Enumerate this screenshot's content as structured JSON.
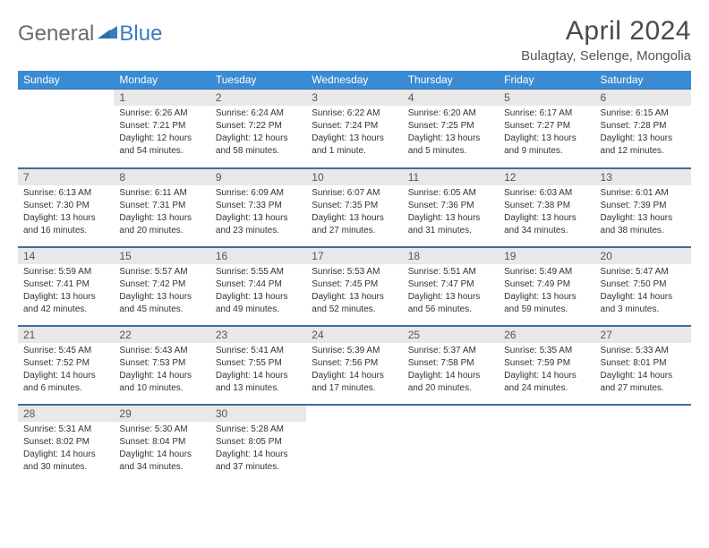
{
  "logo": {
    "general": "General",
    "blue": "Blue"
  },
  "title": "April 2024",
  "subtitle": "Bulagtay, Selenge, Mongolia",
  "colors": {
    "header_bg": "#3b8bd4",
    "header_text": "#ffffff",
    "daynum_bg": "#e8e8e8",
    "row_border": "#3b6fa0",
    "logo_gray": "#6b6b6b",
    "logo_blue": "#3b7bbf"
  },
  "weekdays": [
    "Sunday",
    "Monday",
    "Tuesday",
    "Wednesday",
    "Thursday",
    "Friday",
    "Saturday"
  ],
  "weeks": [
    [
      {
        "n": "",
        "sr": "",
        "ss": "",
        "dl": ""
      },
      {
        "n": "1",
        "sr": "Sunrise: 6:26 AM",
        "ss": "Sunset: 7:21 PM",
        "dl": "Daylight: 12 hours and 54 minutes."
      },
      {
        "n": "2",
        "sr": "Sunrise: 6:24 AM",
        "ss": "Sunset: 7:22 PM",
        "dl": "Daylight: 12 hours and 58 minutes."
      },
      {
        "n": "3",
        "sr": "Sunrise: 6:22 AM",
        "ss": "Sunset: 7:24 PM",
        "dl": "Daylight: 13 hours and 1 minute."
      },
      {
        "n": "4",
        "sr": "Sunrise: 6:20 AM",
        "ss": "Sunset: 7:25 PM",
        "dl": "Daylight: 13 hours and 5 minutes."
      },
      {
        "n": "5",
        "sr": "Sunrise: 6:17 AM",
        "ss": "Sunset: 7:27 PM",
        "dl": "Daylight: 13 hours and 9 minutes."
      },
      {
        "n": "6",
        "sr": "Sunrise: 6:15 AM",
        "ss": "Sunset: 7:28 PM",
        "dl": "Daylight: 13 hours and 12 minutes."
      }
    ],
    [
      {
        "n": "7",
        "sr": "Sunrise: 6:13 AM",
        "ss": "Sunset: 7:30 PM",
        "dl": "Daylight: 13 hours and 16 minutes."
      },
      {
        "n": "8",
        "sr": "Sunrise: 6:11 AM",
        "ss": "Sunset: 7:31 PM",
        "dl": "Daylight: 13 hours and 20 minutes."
      },
      {
        "n": "9",
        "sr": "Sunrise: 6:09 AM",
        "ss": "Sunset: 7:33 PM",
        "dl": "Daylight: 13 hours and 23 minutes."
      },
      {
        "n": "10",
        "sr": "Sunrise: 6:07 AM",
        "ss": "Sunset: 7:35 PM",
        "dl": "Daylight: 13 hours and 27 minutes."
      },
      {
        "n": "11",
        "sr": "Sunrise: 6:05 AM",
        "ss": "Sunset: 7:36 PM",
        "dl": "Daylight: 13 hours and 31 minutes."
      },
      {
        "n": "12",
        "sr": "Sunrise: 6:03 AM",
        "ss": "Sunset: 7:38 PM",
        "dl": "Daylight: 13 hours and 34 minutes."
      },
      {
        "n": "13",
        "sr": "Sunrise: 6:01 AM",
        "ss": "Sunset: 7:39 PM",
        "dl": "Daylight: 13 hours and 38 minutes."
      }
    ],
    [
      {
        "n": "14",
        "sr": "Sunrise: 5:59 AM",
        "ss": "Sunset: 7:41 PM",
        "dl": "Daylight: 13 hours and 42 minutes."
      },
      {
        "n": "15",
        "sr": "Sunrise: 5:57 AM",
        "ss": "Sunset: 7:42 PM",
        "dl": "Daylight: 13 hours and 45 minutes."
      },
      {
        "n": "16",
        "sr": "Sunrise: 5:55 AM",
        "ss": "Sunset: 7:44 PM",
        "dl": "Daylight: 13 hours and 49 minutes."
      },
      {
        "n": "17",
        "sr": "Sunrise: 5:53 AM",
        "ss": "Sunset: 7:45 PM",
        "dl": "Daylight: 13 hours and 52 minutes."
      },
      {
        "n": "18",
        "sr": "Sunrise: 5:51 AM",
        "ss": "Sunset: 7:47 PM",
        "dl": "Daylight: 13 hours and 56 minutes."
      },
      {
        "n": "19",
        "sr": "Sunrise: 5:49 AM",
        "ss": "Sunset: 7:49 PM",
        "dl": "Daylight: 13 hours and 59 minutes."
      },
      {
        "n": "20",
        "sr": "Sunrise: 5:47 AM",
        "ss": "Sunset: 7:50 PM",
        "dl": "Daylight: 14 hours and 3 minutes."
      }
    ],
    [
      {
        "n": "21",
        "sr": "Sunrise: 5:45 AM",
        "ss": "Sunset: 7:52 PM",
        "dl": "Daylight: 14 hours and 6 minutes."
      },
      {
        "n": "22",
        "sr": "Sunrise: 5:43 AM",
        "ss": "Sunset: 7:53 PM",
        "dl": "Daylight: 14 hours and 10 minutes."
      },
      {
        "n": "23",
        "sr": "Sunrise: 5:41 AM",
        "ss": "Sunset: 7:55 PM",
        "dl": "Daylight: 14 hours and 13 minutes."
      },
      {
        "n": "24",
        "sr": "Sunrise: 5:39 AM",
        "ss": "Sunset: 7:56 PM",
        "dl": "Daylight: 14 hours and 17 minutes."
      },
      {
        "n": "25",
        "sr": "Sunrise: 5:37 AM",
        "ss": "Sunset: 7:58 PM",
        "dl": "Daylight: 14 hours and 20 minutes."
      },
      {
        "n": "26",
        "sr": "Sunrise: 5:35 AM",
        "ss": "Sunset: 7:59 PM",
        "dl": "Daylight: 14 hours and 24 minutes."
      },
      {
        "n": "27",
        "sr": "Sunrise: 5:33 AM",
        "ss": "Sunset: 8:01 PM",
        "dl": "Daylight: 14 hours and 27 minutes."
      }
    ],
    [
      {
        "n": "28",
        "sr": "Sunrise: 5:31 AM",
        "ss": "Sunset: 8:02 PM",
        "dl": "Daylight: 14 hours and 30 minutes."
      },
      {
        "n": "29",
        "sr": "Sunrise: 5:30 AM",
        "ss": "Sunset: 8:04 PM",
        "dl": "Daylight: 14 hours and 34 minutes."
      },
      {
        "n": "30",
        "sr": "Sunrise: 5:28 AM",
        "ss": "Sunset: 8:05 PM",
        "dl": "Daylight: 14 hours and 37 minutes."
      },
      {
        "n": "",
        "sr": "",
        "ss": "",
        "dl": ""
      },
      {
        "n": "",
        "sr": "",
        "ss": "",
        "dl": ""
      },
      {
        "n": "",
        "sr": "",
        "ss": "",
        "dl": ""
      },
      {
        "n": "",
        "sr": "",
        "ss": "",
        "dl": ""
      }
    ]
  ]
}
